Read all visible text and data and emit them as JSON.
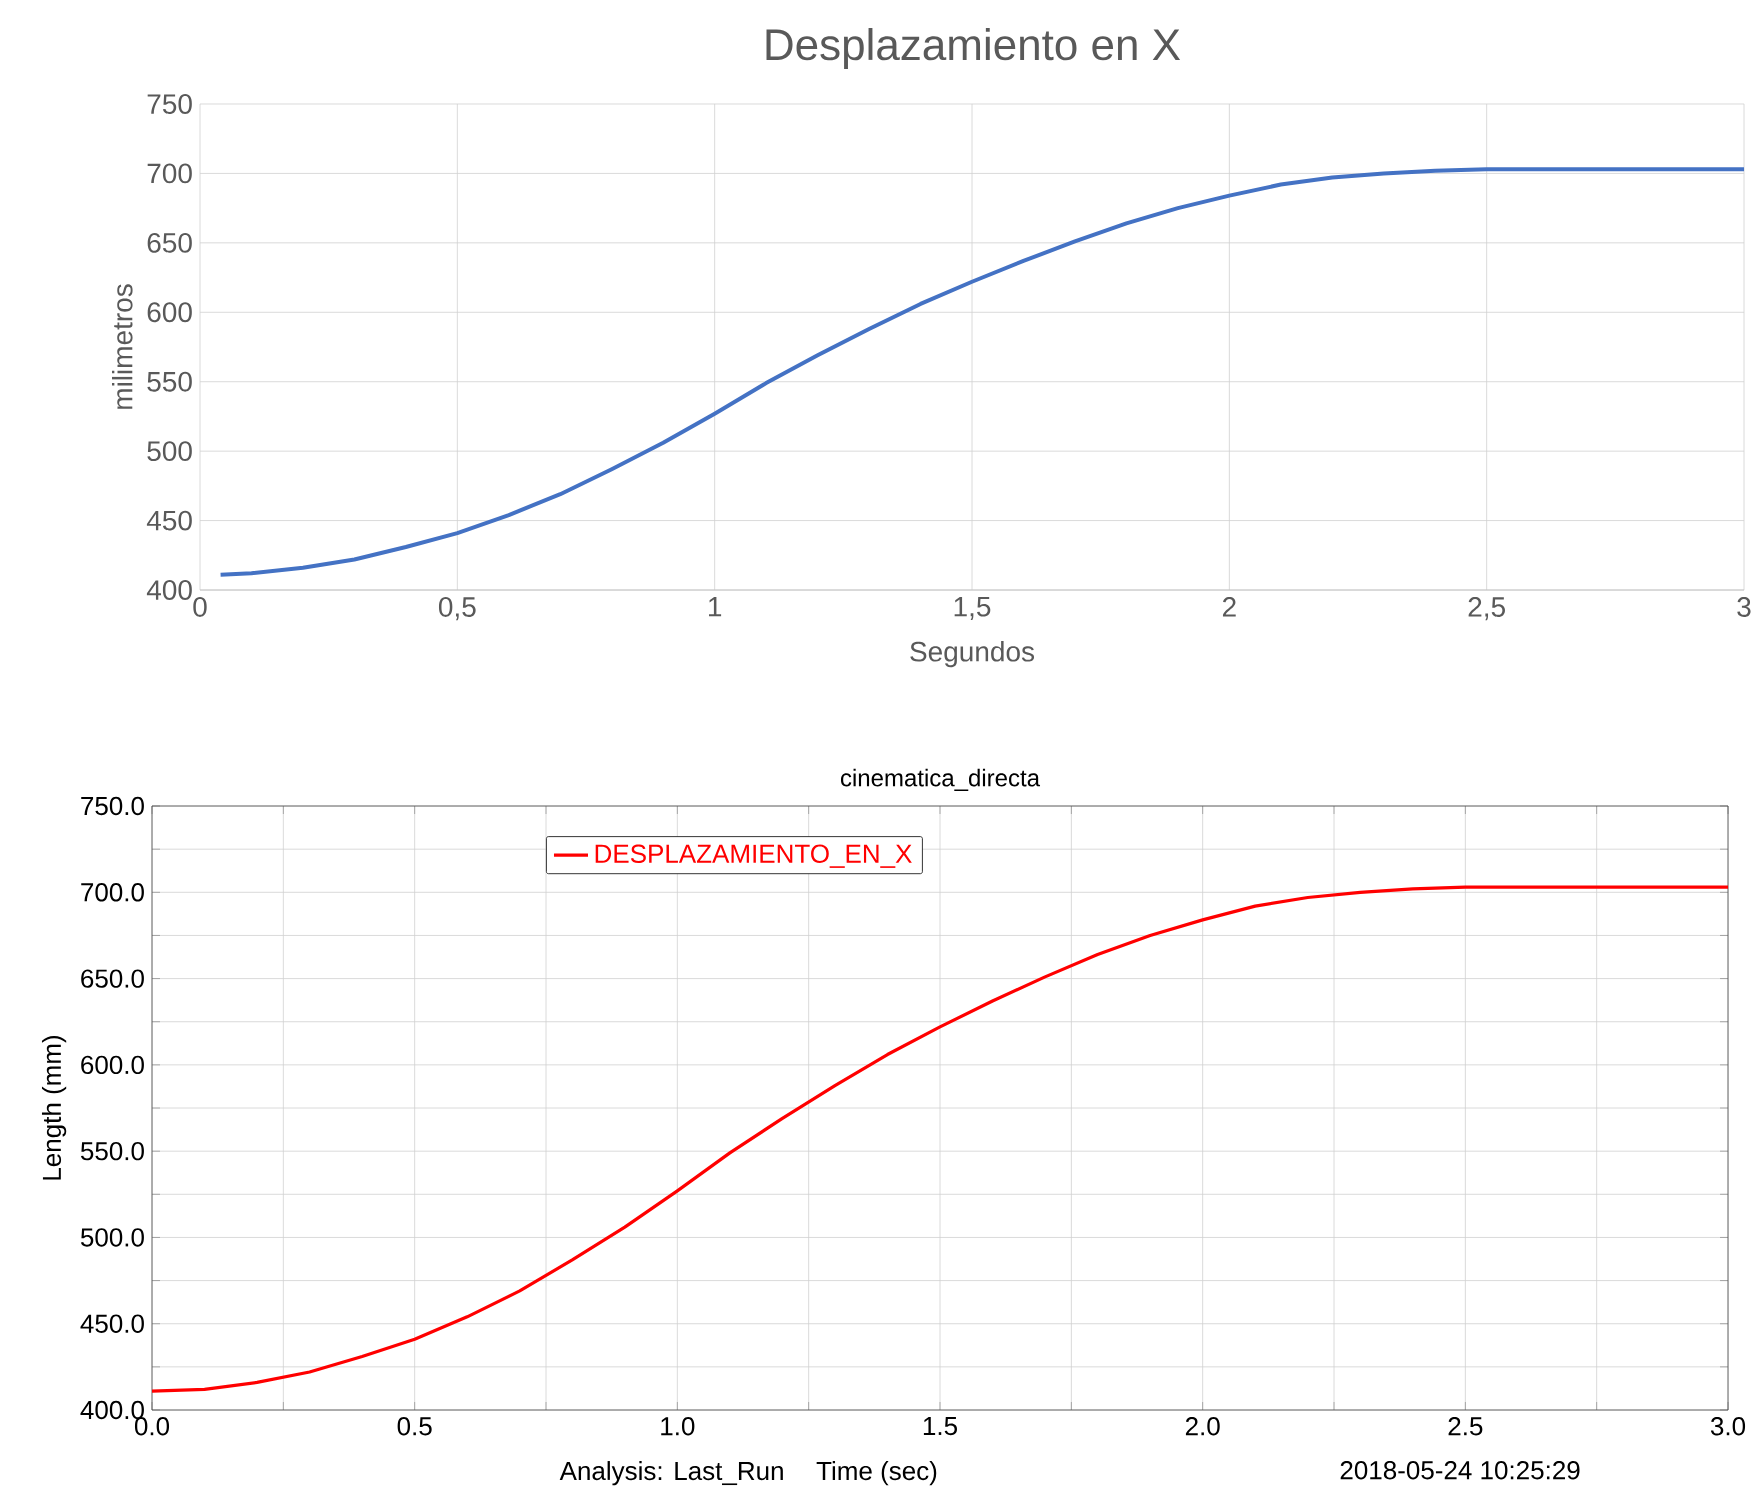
{
  "chart_data": [
    {
      "type": "line",
      "title": "Desplazamiento en X",
      "xlabel": "Segundos",
      "ylabel": "milimetros",
      "x": [
        0.04,
        0.1,
        0.2,
        0.3,
        0.4,
        0.5,
        0.6,
        0.7,
        0.8,
        0.9,
        1.0,
        1.1,
        1.2,
        1.3,
        1.4,
        1.5,
        1.6,
        1.7,
        1.8,
        1.9,
        2.0,
        2.1,
        2.2,
        2.3,
        2.4,
        2.5,
        2.6,
        2.8,
        3.0
      ],
      "series": [
        {
          "color": "#4472c4",
          "values": [
            411,
            412,
            416,
            422,
            431,
            441,
            454,
            469,
            487,
            506,
            527,
            549,
            569,
            588,
            606,
            622,
            637,
            651,
            664,
            675,
            684,
            692,
            697,
            700,
            702,
            703,
            703,
            703,
            703
          ]
        }
      ],
      "xlim": [
        0,
        3
      ],
      "ylim": [
        400,
        750
      ],
      "xticks": [
        0,
        {
          "value": 0.5,
          "label": "0,5"
        },
        1,
        {
          "value": 1.5,
          "label": "1,5"
        },
        2,
        {
          "value": 2.5,
          "label": "2,5"
        },
        3
      ],
      "yticks": [
        400,
        450,
        500,
        550,
        600,
        650,
        700,
        750
      ],
      "grid": true
    },
    {
      "type": "line",
      "title": "cinematica_directa",
      "xlabel": "Time (sec)",
      "ylabel": "Length (mm)",
      "x": [
        0.0,
        0.1,
        0.2,
        0.3,
        0.4,
        0.5,
        0.6,
        0.7,
        0.8,
        0.9,
        1.0,
        1.1,
        1.2,
        1.3,
        1.4,
        1.5,
        1.6,
        1.7,
        1.8,
        1.9,
        2.0,
        2.1,
        2.2,
        2.3,
        2.4,
        2.5,
        2.6,
        2.8,
        3.0
      ],
      "series": [
        {
          "name": "DESPLAZAMIENTO_EN_X",
          "color": "#ff0000",
          "values": [
            411,
            412,
            416,
            422,
            431,
            441,
            454,
            469,
            487,
            506,
            527,
            549,
            569,
            588,
            606,
            622,
            637,
            651,
            664,
            675,
            684,
            692,
            697,
            700,
            702,
            703,
            703,
            703,
            703
          ]
        }
      ],
      "xlim": [
        0,
        3
      ],
      "ylim": [
        400,
        750
      ],
      "xticks": [
        {
          "value": 0,
          "label": "0.0"
        },
        {
          "value": 0.25,
          "label": null
        },
        {
          "value": 0.5,
          "label": "0.5"
        },
        {
          "value": 0.75,
          "label": null
        },
        {
          "value": 1,
          "label": "1.0"
        },
        {
          "value": 1.25,
          "label": null
        },
        {
          "value": 1.5,
          "label": "1.5"
        },
        {
          "value": 1.75,
          "label": null
        },
        {
          "value": 2,
          "label": "2.0"
        },
        {
          "value": 2.25,
          "label": null
        },
        {
          "value": 2.5,
          "label": "2.5"
        },
        {
          "value": 2.75,
          "label": null
        },
        {
          "value": 3,
          "label": "3.0"
        }
      ],
      "yticks": [
        {
          "value": 400,
          "label": "400.0"
        },
        {
          "value": 425,
          "label": null
        },
        {
          "value": 450,
          "label": "450.0"
        },
        {
          "value": 475,
          "label": null
        },
        {
          "value": 500,
          "label": "500.0"
        },
        {
          "value": 525,
          "label": null
        },
        {
          "value": 550,
          "label": "550.0"
        },
        {
          "value": 575,
          "label": null
        },
        {
          "value": 600,
          "label": "600.0"
        },
        {
          "value": 625,
          "label": null
        },
        {
          "value": 650,
          "label": "650.0"
        },
        {
          "value": 675,
          "label": null
        },
        {
          "value": 700,
          "label": "700.0"
        },
        {
          "value": 725,
          "label": null
        },
        {
          "value": 750,
          "label": "750.0"
        }
      ],
      "grid": true,
      "legend": "top left",
      "annotations": [
        "Analysis:  Last_Run",
        "2018-05-24 10:25:29"
      ]
    }
  ]
}
